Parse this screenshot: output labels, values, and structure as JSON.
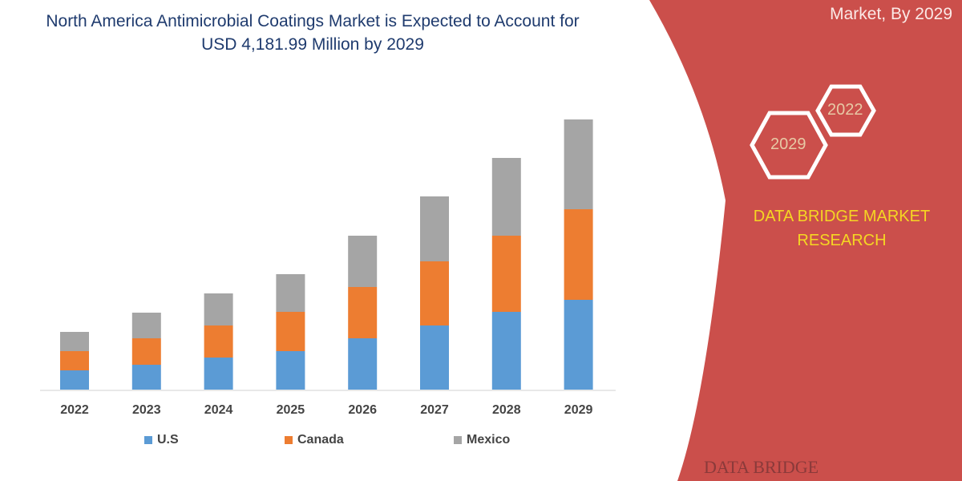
{
  "header": {
    "title": "North America Antimicrobial Coatings Market is Expected to Account for USD 4,181.99 Million by 2029",
    "right_title": "Market, By 2029"
  },
  "hexagons": [
    "2022",
    "2029"
  ],
  "brand": {
    "line1": "DATA BRIDGE MARKET",
    "line2": "RESEARCH",
    "logo_text": "DATA BRIDGE"
  },
  "colors": {
    "us": "#5b9bd5",
    "canada": "#ed7d31",
    "mexico": "#a5a5a5",
    "panel": "#cb4f4b",
    "brand_text": "#f5d623",
    "title": "#1f3b6e"
  },
  "chart_data": {
    "type": "bar",
    "stacked": true,
    "title": "North America Antimicrobial Coatings Market is Expected to Account for USD 4,181.99 Million by 2029",
    "categories": [
      "2022",
      "2023",
      "2024",
      "2025",
      "2026",
      "2027",
      "2028",
      "2029"
    ],
    "series": [
      {
        "name": "U.S",
        "values": [
          24,
          31,
          40,
          48,
          64,
          80,
          97,
          112
        ]
      },
      {
        "name": "Canada",
        "values": [
          24,
          33,
          40,
          49,
          64,
          80,
          95,
          113
        ]
      },
      {
        "name": "Mexico",
        "values": [
          24,
          32,
          40,
          47,
          64,
          81,
          97,
          112
        ]
      }
    ],
    "ylim": [
      0,
      337
    ],
    "grid": false,
    "legend": "bottom"
  }
}
